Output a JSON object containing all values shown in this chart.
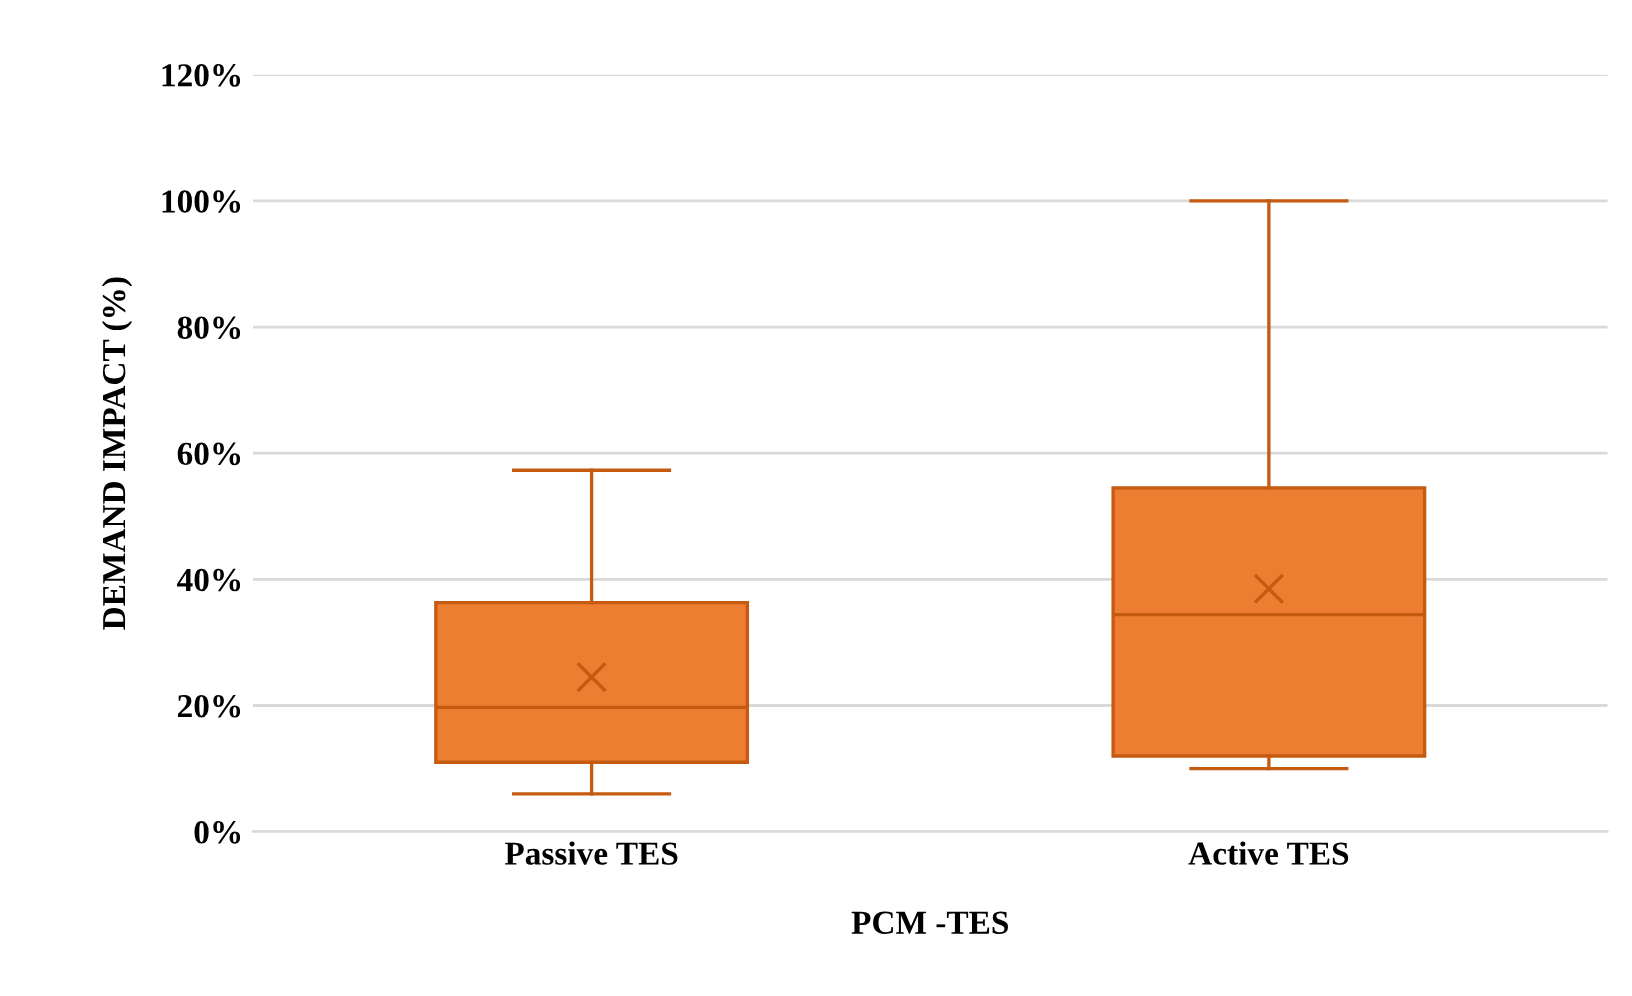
{
  "chart_data": {
    "type": "box",
    "xlabel": "PCM -TES",
    "ylabel": "DEMAND IMPACT (%)",
    "categories": [
      "Passive TES",
      "Active TES"
    ],
    "color": "#ed7d31",
    "boxes": [
      {
        "low": 6,
        "q1": 11,
        "median": 19.7,
        "q3": 36.3,
        "high": 57.3,
        "mean": 24.5
      },
      {
        "low": 10,
        "q1": 12,
        "median": 34.4,
        "q3": 54.5,
        "high": 100,
        "mean": 38.5
      }
    ],
    "ylim": [
      0,
      120
    ],
    "yticks": [
      {
        "value": 0,
        "label": "0%"
      },
      {
        "value": 20,
        "label": "20%"
      },
      {
        "value": 40,
        "label": "40%"
      },
      {
        "value": 60,
        "label": "60%"
      },
      {
        "value": 80,
        "label": "80%"
      },
      {
        "value": 100,
        "label": "100%"
      },
      {
        "value": 120,
        "label": "120%"
      }
    ],
    "grid": "y",
    "legend": false
  }
}
